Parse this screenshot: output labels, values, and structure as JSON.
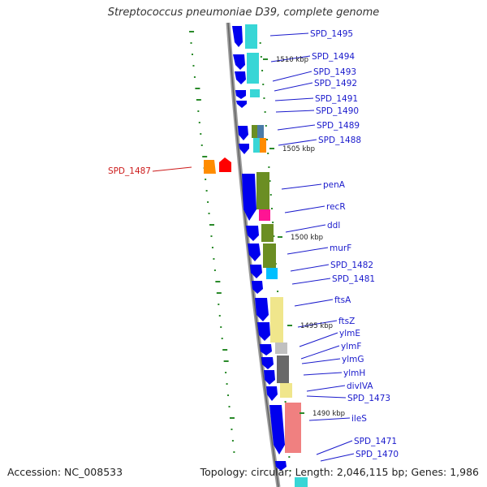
{
  "title": "Streptococcus pneumoniae D39, complete genome",
  "footer": {
    "accession": "Accession: NC_008533",
    "summary": "Topology: circular; Length: 2,046,115 bp; Genes: 1,986"
  },
  "colors": {
    "backbone": "#888888",
    "forward_cds": "#0000ee",
    "reverse_cds_a": "#ff8c00",
    "reverse_cds_b": "#ff0000",
    "forward_label": "#1a1acc",
    "reverse_label": "#cc1a1a",
    "gc_skew_marks": "#2a8a2a"
  },
  "ruler_labels": [
    "1510 kbp",
    "1505 kbp",
    "1500 kbp",
    "1495 kbp",
    "1490 kbp"
  ],
  "genes": [
    {
      "label": "SPD_1495",
      "cog_color": "#00dddd"
    },
    {
      "label": "SPD_1494",
      "cog_color": "#00dddd"
    },
    {
      "label": "SPD_1493",
      "cog_color": "#00dddd"
    },
    {
      "label": "SPD_1492",
      "cog_color": "#00dddd"
    },
    {
      "label": "SPD_1491",
      "cog_color": "#00dddd"
    },
    {
      "label": "SPD_1490",
      "cog_color": "#00dddd"
    },
    {
      "label": "SPD_1489",
      "cog_color": "#6b8e23"
    },
    {
      "label": "SPD_1488",
      "cog_color": "#ff8c00"
    },
    {
      "label": "penA",
      "cog_color": "#6b8e23"
    },
    {
      "label": "recR",
      "cog_color": "#ff1493"
    },
    {
      "label": "ddl",
      "cog_color": "#6b8e23"
    },
    {
      "label": "murF",
      "cog_color": "#6b8e23"
    },
    {
      "label": "SPD_1482",
      "cog_color": "#00bfff"
    },
    {
      "label": "SPD_1481",
      "cog_color": "#00bfff"
    },
    {
      "label": "ftsA",
      "cog_color": "#f0e68c"
    },
    {
      "label": "ftsZ",
      "cog_color": "#f0e68c"
    },
    {
      "label": "ylmE",
      "cog_color": "#c0c0c0"
    },
    {
      "label": "ylmF",
      "cog_color": "#c0c0c0"
    },
    {
      "label": "ylmG",
      "cog_color": "#696969"
    },
    {
      "label": "ylmH",
      "cog_color": "#696969"
    },
    {
      "label": "divIVA",
      "cog_color": "#f0e68c"
    },
    {
      "label": "SPD_1473",
      "cog_color": "#f0e68c"
    },
    {
      "label": "ileS",
      "cog_color": "#f08080"
    },
    {
      "label": "SPD_1471",
      "cog_color": "#00dddd"
    },
    {
      "label": "SPD_1470",
      "cog_color": "#00dddd"
    }
  ],
  "reverse_genes": [
    {
      "label": "SPD_1487"
    }
  ]
}
